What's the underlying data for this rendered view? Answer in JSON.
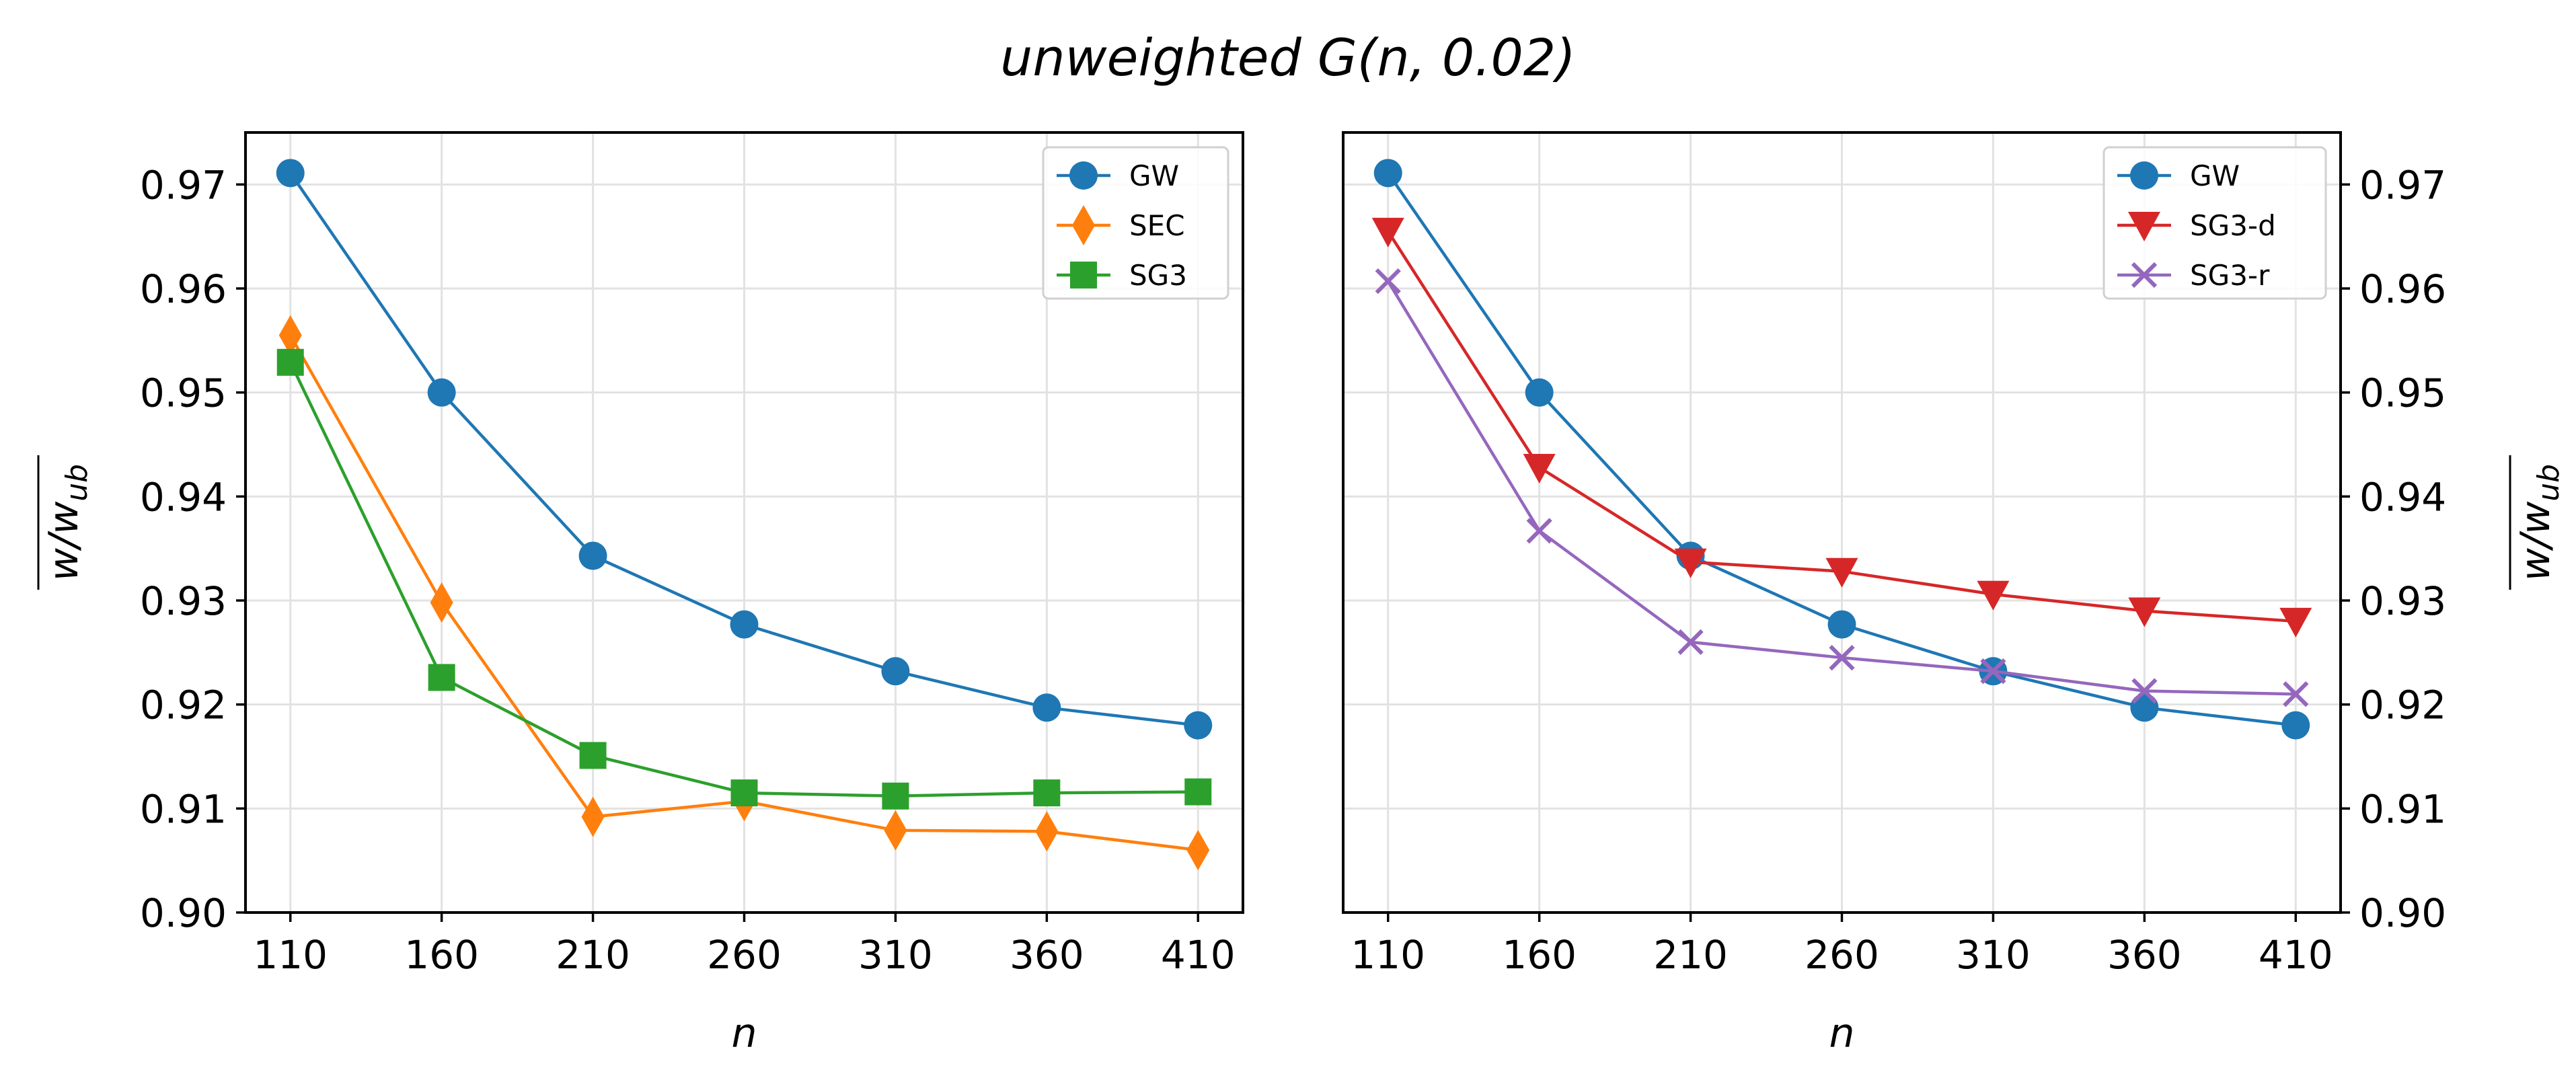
{
  "figure_title": "unweighted G(n, 0.02)",
  "chart_data": [
    {
      "type": "line",
      "title": "",
      "xlabel": "n",
      "ylabel": "w/w_ub",
      "ylabel_parts": {
        "base": "w/w",
        "sub": "ub"
      },
      "ylim": [
        0.9,
        0.975
      ],
      "yticks": [
        "0.90",
        "0.91",
        "0.92",
        "0.93",
        "0.94",
        "0.95",
        "0.96",
        "0.97"
      ],
      "x": [
        110,
        160,
        210,
        260,
        310,
        360,
        410
      ],
      "xticks": [
        "110",
        "160",
        "210",
        "260",
        "310",
        "360",
        "410"
      ],
      "grid": true,
      "legend_position": "top-right",
      "yaxis_side": "left",
      "series": [
        {
          "name": "GW",
          "marker": "circle",
          "color": "#1f77b4",
          "values": [
            0.9711,
            0.95,
            0.9343,
            0.9277,
            0.9232,
            0.9197,
            0.918
          ]
        },
        {
          "name": "SEC",
          "marker": "diamond",
          "color": "#ff7f0e",
          "values": [
            0.9555,
            0.9298,
            0.9092,
            0.9107,
            0.9079,
            0.9078,
            0.906
          ]
        },
        {
          "name": "SG3",
          "marker": "square",
          "color": "#2ca02c",
          "values": [
            0.9529,
            0.9226,
            0.9151,
            0.9115,
            0.9112,
            0.9115,
            0.9116
          ]
        }
      ]
    },
    {
      "type": "line",
      "title": "",
      "xlabel": "n",
      "ylabel": "w/w_ub",
      "ylabel_parts": {
        "base": "w/w",
        "sub": "ub"
      },
      "ylim": [
        0.9,
        0.975
      ],
      "yticks": [
        "0.90",
        "0.91",
        "0.92",
        "0.93",
        "0.94",
        "0.95",
        "0.96",
        "0.97"
      ],
      "x": [
        110,
        160,
        210,
        260,
        310,
        360,
        410
      ],
      "xticks": [
        "110",
        "160",
        "210",
        "260",
        "310",
        "360",
        "410"
      ],
      "grid": true,
      "legend_position": "top-right",
      "yaxis_side": "right",
      "series": [
        {
          "name": "GW",
          "marker": "circle",
          "color": "#1f77b4",
          "values": [
            0.9711,
            0.95,
            0.9343,
            0.9277,
            0.9232,
            0.9197,
            0.918
          ]
        },
        {
          "name": "SG3-d",
          "marker": "triangle-down",
          "color": "#d62728",
          "values": [
            0.9655,
            0.9428,
            0.9337,
            0.9328,
            0.9306,
            0.929,
            0.928
          ]
        },
        {
          "name": "SG3-r",
          "marker": "x",
          "color": "#9467bd",
          "values": [
            0.9607,
            0.9367,
            0.926,
            0.9245,
            0.9232,
            0.9213,
            0.921
          ]
        }
      ]
    }
  ]
}
